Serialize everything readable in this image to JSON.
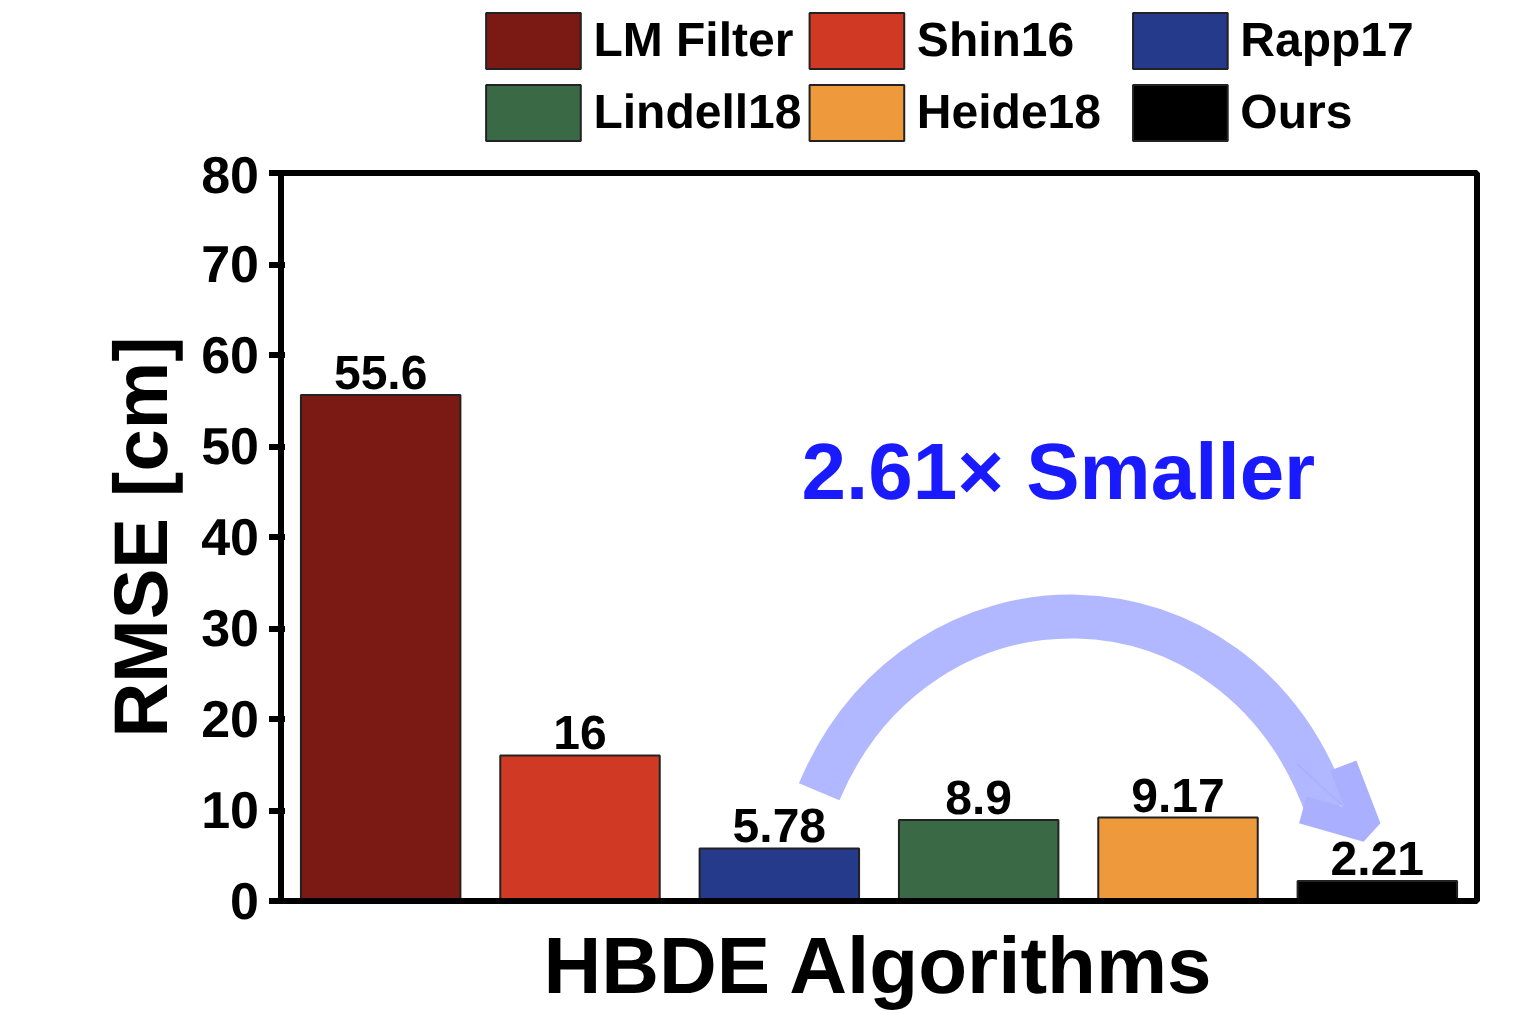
{
  "chart_data": {
    "type": "bar",
    "xlabel": "HBDE Algorithms",
    "ylabel": "RMSE [cm]",
    "categories": [
      null,
      null,
      null,
      null,
      null,
      null
    ],
    "series": [
      {
        "name": "LM Filter",
        "color": "#7b1a14",
        "values": [
          55.6,
          null,
          null,
          null,
          null,
          null
        ]
      },
      {
        "name": "Shin16",
        "color": "#d03a24",
        "values": [
          null,
          16,
          null,
          null,
          null,
          null
        ]
      },
      {
        "name": "Rapp17",
        "color": "#263a8c",
        "values": [
          null,
          null,
          5.78,
          null,
          null,
          null
        ]
      },
      {
        "name": "Lindell18",
        "color": "#3a6a45",
        "values": [
          null,
          null,
          null,
          8.9,
          null,
          null
        ]
      },
      {
        "name": "Heide18",
        "color": "#ee9a3c",
        "values": [
          null,
          null,
          null,
          null,
          9.17,
          null
        ]
      },
      {
        "name": "Ours",
        "color": "#000000",
        "values": [
          null,
          null,
          null,
          null,
          null,
          2.21
        ]
      }
    ],
    "ylim": [
      0,
      80
    ],
    "yticks": [
      0,
      10,
      20,
      30,
      40,
      50,
      60,
      70,
      80
    ],
    "data_labels": true,
    "grid": false,
    "legend": "top",
    "annotations": [
      "2.61× Smaller"
    ]
  }
}
